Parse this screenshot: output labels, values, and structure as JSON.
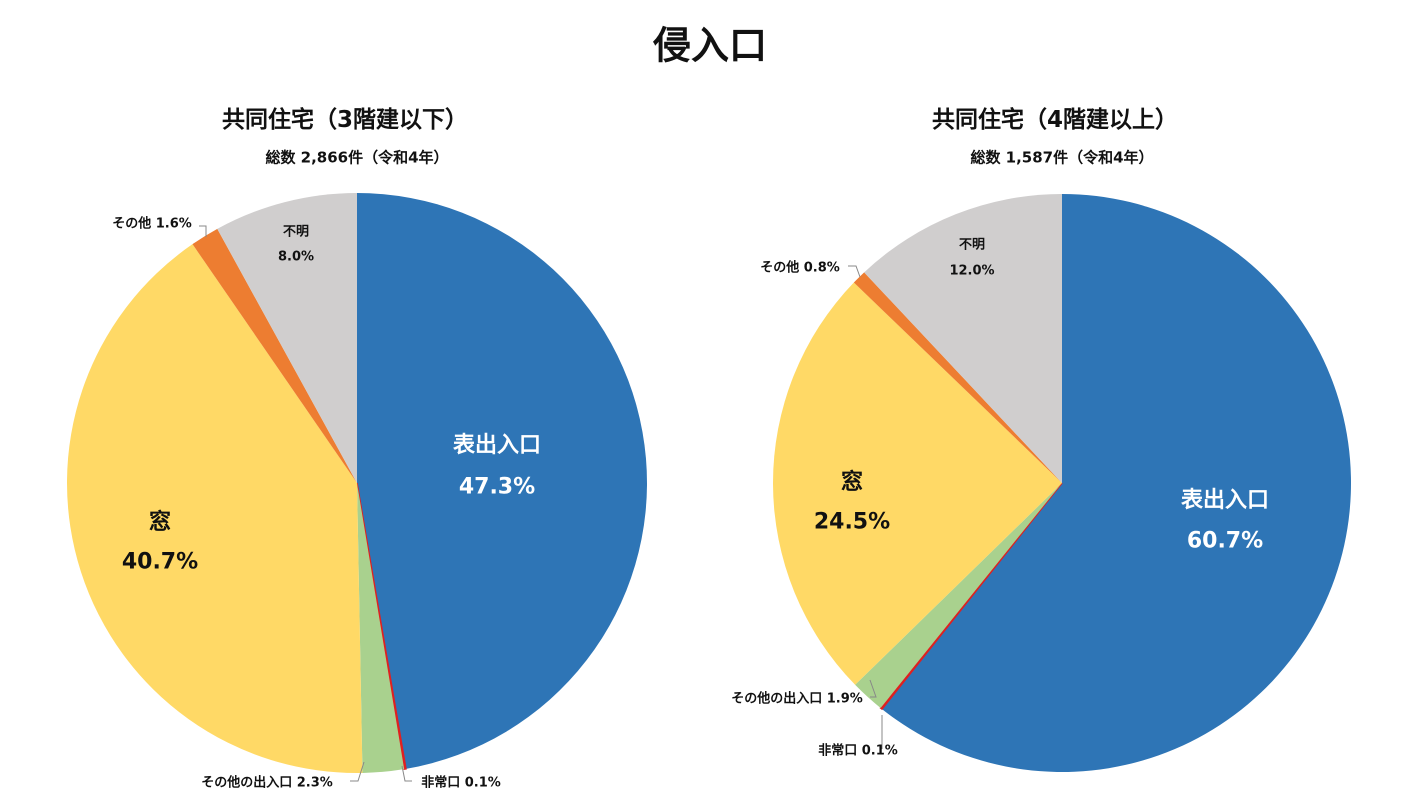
{
  "title": "侵入口",
  "colors": {
    "表出入口": "#2E75B6",
    "非常口": "#E02020",
    "その他の出入口": "#A9D18E",
    "窓": "#FFD966",
    "その他": "#ED7D31",
    "不明": "#D0CECE"
  },
  "chart_data": [
    {
      "type": "pie",
      "title": "共同住宅（3階建以下）",
      "subtitle": "総数 2,866件（令和4年）",
      "start": "12 o'clock, clockwise",
      "slices": [
        {
          "label": "表出入口",
          "value": 47.3,
          "text": "47.3%"
        },
        {
          "label": "非常口",
          "value": 0.1,
          "text": "非常口 0.1%"
        },
        {
          "label": "その他の出入口",
          "value": 2.3,
          "text": "その他の出入口 2.3%"
        },
        {
          "label": "窓",
          "value": 40.7,
          "text": "40.7%"
        },
        {
          "label": "その他",
          "value": 1.6,
          "text": "その他 1.6%"
        },
        {
          "label": "不明",
          "value": 8.0,
          "text": "8.0%"
        }
      ]
    },
    {
      "type": "pie",
      "title": "共同住宅（4階建以上）",
      "subtitle": "総数 1,587件（令和4年）",
      "start": "12 o'clock, clockwise",
      "slices": [
        {
          "label": "表出入口",
          "value": 60.7,
          "text": "60.7%"
        },
        {
          "label": "非常口",
          "value": 0.1,
          "text": "非常口 0.1%"
        },
        {
          "label": "その他の出入口",
          "value": 1.9,
          "text": "その他の出入口 1.9%"
        },
        {
          "label": "窓",
          "value": 24.5,
          "text": "24.5%"
        },
        {
          "label": "その他",
          "value": 0.8,
          "text": "その他 0.8%"
        },
        {
          "label": "不明",
          "value": 12.0,
          "text": "12.0%"
        }
      ]
    }
  ]
}
